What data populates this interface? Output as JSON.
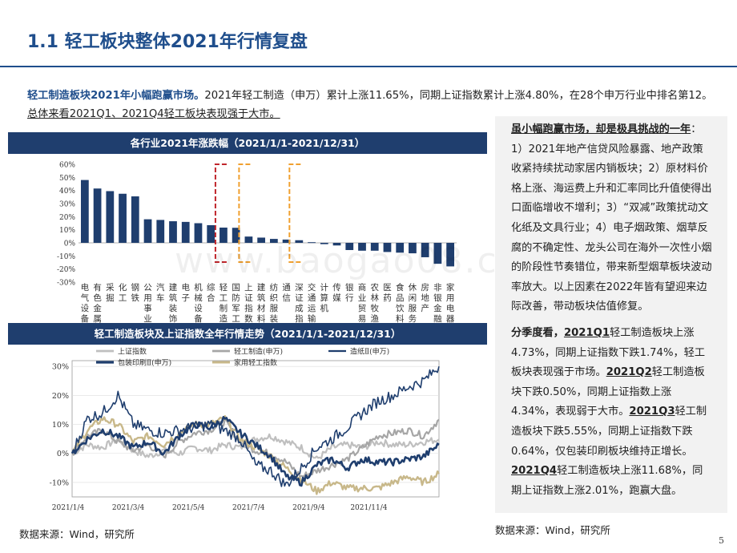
{
  "header": {
    "title": "1.1 轻工板块整体2021年行情复盘"
  },
  "intro": {
    "lead": "轻工制造板块2021年小幅跑赢市场。",
    "body": "2021年轻工制造（申万）累计上涨11.65%，同期上证指数累计上涨4.80%，在28个申万行业中排名第12。",
    "underlined": "总体来看2021Q1、2021Q4轻工板块表现强于大市。"
  },
  "bar_panel": {
    "title": "各行业2021年涨跌幅（2021/1/1-2021/12/31）"
  },
  "line_panel": {
    "title": "轻工制造板块及上证指数全年行情走势（2021/1/1-2021/12/31）"
  },
  "colors": {
    "navy": "#1f3e6e",
    "bar": "#1f3e6e",
    "red_box": "#c0262c",
    "orange_box": "#f0a030",
    "sse": "#bfbfbf",
    "light_industry": "#a6a6a6",
    "paper": "#1f3e6e",
    "packaging": "#1f3e6e",
    "home": "#c8b88a"
  },
  "chart_data": [
    {
      "type": "bar",
      "categories": [
        "电气设备",
        "有色金属",
        "采掘",
        "化工",
        "钢铁",
        "公用事业",
        "汽车",
        "建筑装饰",
        "电子",
        "机械设备",
        "综合",
        "轻工制造",
        "国防军工",
        "上证指数",
        "建筑材料",
        "纺织服装",
        "通信",
        "深证成指",
        "交通运输",
        "计算机",
        "传媒",
        "银行",
        "商业贸易",
        "农林牧渔",
        "医药",
        "食品饮料",
        "休闲服务",
        "房地产",
        "非银金融",
        "家用电器"
      ],
      "values": [
        48.0,
        41.5,
        39.5,
        37.5,
        35.5,
        18.0,
        17.5,
        16.5,
        16.0,
        15.0,
        13.5,
        11.65,
        11.5,
        4.8,
        4.0,
        3.0,
        2.5,
        2.0,
        0.5,
        -1.0,
        -2.0,
        -5.5,
        -6.0,
        -6.0,
        -7.0,
        -7.5,
        -8.0,
        -11.0,
        -16.0,
        -18.0
      ],
      "ylim": [
        -30,
        60
      ],
      "yticks": [
        "60%",
        "50%",
        "40%",
        "30%",
        "20%",
        "10%",
        "0%",
        "-10%",
        "-20%",
        "-30%"
      ],
      "highlight_red": [
        "轻工制造"
      ],
      "highlight_orange": [
        "上证指数",
        "深证成指"
      ]
    },
    {
      "type": "line",
      "x_ticks": [
        "2021/1/4",
        "2021/3/4",
        "2021/5/4",
        "2021/7/4",
        "2021/9/4",
        "2021/11/4"
      ],
      "ylim": [
        -15,
        32
      ],
      "yticks": [
        "30%",
        "20%",
        "10%",
        "0%",
        "-10%"
      ],
      "legend": [
        "上证指数",
        "轻工制造(申万)",
        "造纸Ⅱ(申万)",
        "包装印刷Ⅱ(申万)",
        "家用轻工指数"
      ],
      "series": [
        {
          "name": "上证指数",
          "points": [
            0,
            3,
            2,
            5,
            1,
            -1,
            1,
            0,
            2,
            1,
            3,
            2,
            5,
            6,
            4,
            2,
            -2,
            2,
            3,
            2,
            4,
            3,
            3,
            4,
            4.8
          ]
        },
        {
          "name": "轻工制造(申万)",
          "points": [
            0,
            6,
            8,
            4,
            1,
            3,
            -1,
            4,
            7,
            8,
            11,
            4,
            1,
            0,
            -3,
            -8,
            -6,
            -4,
            -2,
            2,
            6,
            7,
            8,
            6,
            11.65
          ]
        },
        {
          "name": "造纸Ⅱ(申万)",
          "points": [
            0,
            12,
            14,
            20,
            10,
            8,
            7,
            8,
            9,
            10,
            8,
            5,
            -4,
            -6,
            -11,
            -5,
            2,
            5,
            9,
            14,
            18,
            20,
            23,
            25,
            30
          ]
        },
        {
          "name": "包装印刷Ⅱ(申万)",
          "points": [
            0,
            5,
            8,
            6,
            2,
            4,
            0,
            6,
            10,
            9,
            12,
            7,
            3,
            -1,
            -8,
            -10,
            -4,
            -2,
            -5,
            -2,
            -3,
            -3,
            -2,
            -1,
            3
          ]
        },
        {
          "name": "家用轻工指数",
          "points": [
            0,
            8,
            12,
            10,
            4,
            6,
            3,
            7,
            10,
            10,
            12,
            5,
            2,
            -1,
            -5,
            -9,
            -13,
            -10,
            -12,
            -12,
            -12,
            -10,
            -8,
            -10,
            -7
          ]
        }
      ]
    }
  ],
  "right": {
    "p1_lead": "虽小幅跑赢市场，却是极具挑战的一年",
    "p1_body": "：1）2021年地产信贷风险暴露、地产政策收紧持续扰动家居内销板块；2）原材料价格上涨、海运费上升和汇率同比升值使得出口面临增收不增利；3）“双减”政策扰动文化纸及文具行业；4）电子烟政策、烟草反腐的不确定性、龙头公司在海外一次性小烟的阶段性节奏错位，带来新型烟草板块波动率放大。以上因素在2022年皆有望迎来边际改善，带动板块估值修复。",
    "p2_lead": "分季度看，",
    "q1_tag": "2021Q1",
    "q1_text": "轻工制造板块上涨4.73%，同期上证指数下跌1.74%，轻工板块表现强于市场。",
    "q2_tag": "2021Q2",
    "q2_text": "轻工制造板块下跌0.50%，同期上证指数上涨4.34%，表现弱于大市。",
    "q3_tag": "2021Q3",
    "q3_text": "轻工制造板块下跌5.55%，同期上证指数下跌0.64%，仅包装印刷板块维持正增长。",
    "q4_tag": "2021Q4",
    "q4_text": "轻工制造板块上涨11.68%，同期上证指数上涨2.01%，跑赢大盘。"
  },
  "footer": {
    "source_left": "数据来源：Wind，研究所",
    "source_right": "数据来源：Wind，研究所",
    "page": "5"
  },
  "watermark": "www.baogao08.com"
}
